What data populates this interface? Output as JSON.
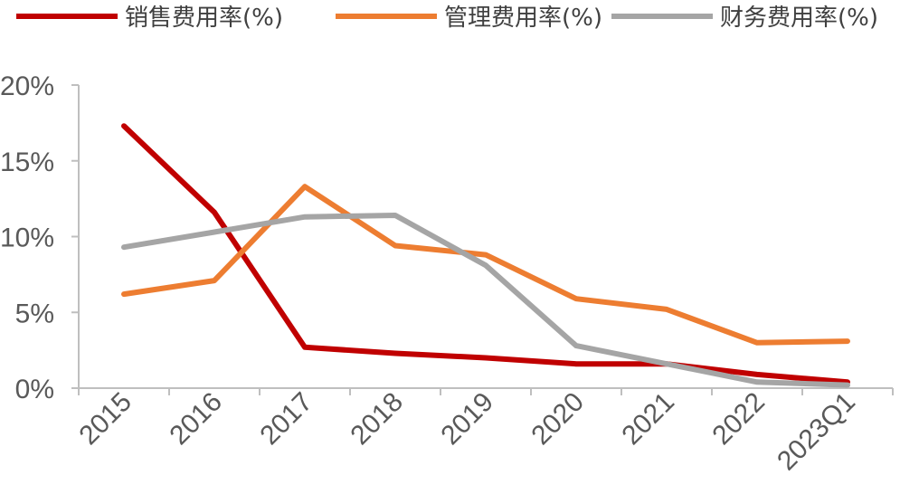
{
  "chart_data": {
    "type": "line",
    "title": "",
    "xlabel": "",
    "ylabel": "",
    "categories": [
      "2015",
      "2016",
      "2017",
      "2018",
      "2019",
      "2020",
      "2021",
      "2022",
      "2023Q1"
    ],
    "ylim": [
      0,
      20
    ],
    "yticks": [
      "0%",
      "5%",
      "10%",
      "15%",
      "20%"
    ],
    "grid": false,
    "legend_position": "top",
    "series": [
      {
        "name": "销售费用率(%)",
        "color": "#C00000",
        "values": [
          17.3,
          11.6,
          2.7,
          2.3,
          2.0,
          1.6,
          1.6,
          0.9,
          0.4
        ]
      },
      {
        "name": "管理费用率(%)",
        "color": "#ED7D31",
        "values": [
          6.2,
          7.1,
          13.3,
          9.4,
          8.8,
          5.9,
          5.2,
          3.0,
          3.1
        ]
      },
      {
        "name": "财务费用率(%)",
        "color": "#A5A5A5",
        "values": [
          9.3,
          10.3,
          11.3,
          11.4,
          8.1,
          2.8,
          1.6,
          0.4,
          0.2
        ]
      }
    ]
  }
}
